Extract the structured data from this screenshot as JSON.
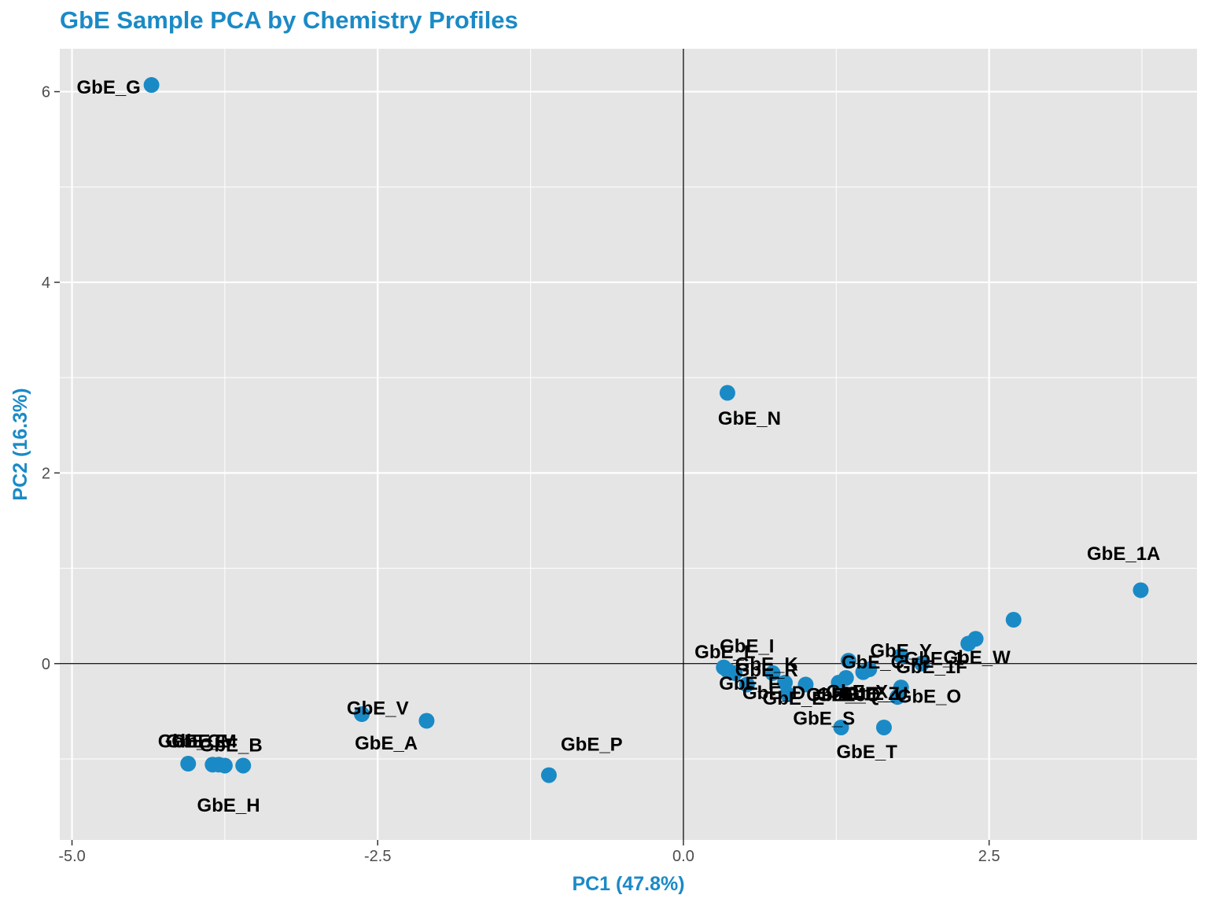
{
  "title": "GbE Sample PCA by Chemistry Profiles",
  "chart_data": {
    "type": "scatter",
    "title": "GbE Sample PCA by Chemistry Profiles",
    "xlabel": "PC1 (47.8%)",
    "ylabel": "PC2 (16.3%)",
    "xlim": [
      -5.1,
      4.2
    ],
    "ylim": [
      -1.85,
      6.45
    ],
    "x_ticks": [
      -5.0,
      -2.5,
      0.0,
      2.5
    ],
    "x_tick_labels": [
      "-5.0",
      "-2.5",
      "0.0",
      "2.5"
    ],
    "y_ticks": [
      0,
      2,
      4,
      6
    ],
    "y_tick_labels": [
      "0",
      "2",
      "4",
      "6"
    ],
    "reference_lines": {
      "x": 0,
      "y": 0
    },
    "grid": true,
    "colors": {
      "panel_bg": "#e5e5e5",
      "grid": "#ffffff",
      "point": "#1a8ac6",
      "title": "#1a8ac6",
      "label": "#000000"
    },
    "points": [
      {
        "label": "GbE_G",
        "x": -4.35,
        "y": 6.07,
        "lx": -4.7,
        "ly": 6.03
      },
      {
        "label": "GbE_N",
        "x": 0.36,
        "y": 2.84,
        "lx": 0.54,
        "ly": 2.56
      },
      {
        "label": "GbE_1A",
        "x": 3.74,
        "y": 0.77,
        "lx": 3.6,
        "ly": 1.14
      },
      {
        "label": "",
        "x": 2.7,
        "y": 0.46
      },
      {
        "label": "GbE_W",
        "x": 2.39,
        "y": 0.26,
        "lx": 2.4,
        "ly": 0.05
      },
      {
        "label": "GbE_1F",
        "x": 2.33,
        "y": 0.21,
        "lx": 2.03,
        "ly": -0.05
      },
      {
        "label": "GbE_Y",
        "x": 1.78,
        "y": 0.08,
        "lx": 1.78,
        "ly": 0.12
      },
      {
        "label": "GbE_1",
        "x": 1.95,
        "y": 0.0,
        "lx": 2.05,
        "ly": 0.04
      },
      {
        "label": "",
        "x": 1.35,
        "y": 0.03
      },
      {
        "label": "GbE_Z",
        "x": 1.52,
        "y": -0.06,
        "lx": 1.52,
        "ly": -0.33
      },
      {
        "label": "GbE_O",
        "x": 1.78,
        "y": -0.25,
        "lx": 2.01,
        "ly": -0.36
      },
      {
        "label": "GbE_U",
        "x": 1.47,
        "y": -0.09,
        "lx": 1.58,
        "ly": -0.33
      },
      {
        "label": "GbE_X",
        "x": 1.33,
        "y": -0.15,
        "lx": 1.42,
        "ly": -0.31
      },
      {
        "label": "GbE_Q",
        "x": 1.27,
        "y": -0.2,
        "lx": 1.35,
        "ly": -0.34
      },
      {
        "label": "GbE_C",
        "x": 1.75,
        "y": -0.35,
        "lx": 1.55,
        "ly": 0.0
      },
      {
        "label": "GbE_J",
        "x": 1.0,
        "y": -0.22,
        "lx": 1.25,
        "ly": -0.34
      },
      {
        "label": "GbE_S",
        "x": 1.29,
        "y": -0.67,
        "lx": 1.15,
        "ly": -0.59
      },
      {
        "label": "GbE_T",
        "x": 1.64,
        "y": -0.67,
        "lx": 1.5,
        "ly": -0.94
      },
      {
        "label": "GbE_D",
        "x": 0.85,
        "y": -0.32,
        "lx": 0.74,
        "ly": -0.32
      },
      {
        "label": "GbE_E",
        "x": 0.83,
        "y": -0.2,
        "lx": 0.9,
        "ly": -0.38
      },
      {
        "label": "GbE_F",
        "x": 0.52,
        "y": -0.22,
        "lx": 0.54,
        "ly": -0.22
      },
      {
        "label": "GbE_I",
        "x": 0.33,
        "y": -0.04,
        "lx": 0.52,
        "ly": 0.17
      },
      {
        "label": "GbE_L",
        "x": 0.36,
        "y": -0.07,
        "lx": 0.34,
        "ly": 0.11
      },
      {
        "label": "GbE_K",
        "x": 0.42,
        "y": -0.1,
        "lx": 0.68,
        "ly": -0.02
      },
      {
        "label": "GbE_R",
        "x": 0.73,
        "y": -0.1,
        "lx": 0.68,
        "ly": -0.08
      },
      {
        "label": "GbE_V",
        "x": -2.63,
        "y": -0.53,
        "lx": -2.5,
        "ly": -0.48
      },
      {
        "label": "GbE_A",
        "x": -2.1,
        "y": -0.6,
        "lx": -2.43,
        "ly": -0.85
      },
      {
        "label": "GbE_P",
        "x": -1.1,
        "y": -1.17,
        "lx": -0.75,
        "ly": -0.86
      },
      {
        "label": "GbE_B",
        "x": -3.6,
        "y": -1.07,
        "lx": -3.7,
        "ly": -0.87
      },
      {
        "label": "GbE_M",
        "x": -3.75,
        "y": -1.07,
        "lx": -3.92,
        "ly": -0.83
      },
      {
        "label": "GbE_C",
        "x": -3.8,
        "y": -1.06,
        "lx": -4.04,
        "ly": -0.83
      },
      {
        "label": "GbE_E",
        "x": -3.85,
        "y": -1.06,
        "lx": -3.98,
        "ly": -0.83
      },
      {
        "label": "GbE_H",
        "x": -4.05,
        "y": -1.05,
        "lx": -3.72,
        "ly": -1.5
      }
    ]
  }
}
